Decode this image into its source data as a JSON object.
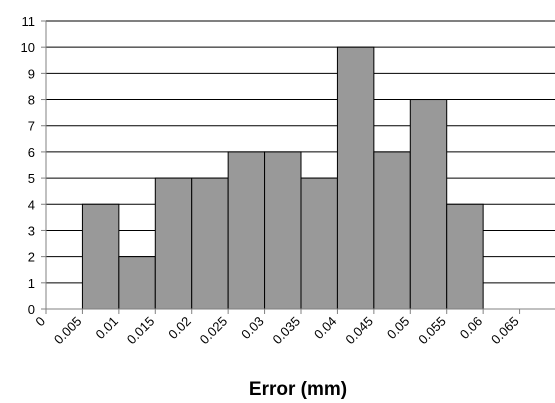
{
  "chart_data": {
    "type": "bar",
    "title": "",
    "xlabel": "Error (mm)",
    "ylabel": "",
    "x_ticks": [
      "0",
      "0.005",
      "0.01",
      "0.015",
      "0.02",
      "0.025",
      "0.03",
      "0.035",
      "0.04",
      "0.045",
      "0.05",
      "0.055",
      "0.06",
      "0.065"
    ],
    "y_ticks": [
      "0",
      "1",
      "2",
      "3",
      "4",
      "5",
      "6",
      "7",
      "8",
      "9",
      "10",
      "11"
    ],
    "ylim": [
      0,
      11
    ],
    "bins": [
      {
        "from": 0.005,
        "to": 0.01,
        "value": 4
      },
      {
        "from": 0.01,
        "to": 0.015,
        "value": 2
      },
      {
        "from": 0.015,
        "to": 0.02,
        "value": 5
      },
      {
        "from": 0.02,
        "to": 0.025,
        "value": 5
      },
      {
        "from": 0.025,
        "to": 0.03,
        "value": 6
      },
      {
        "from": 0.03,
        "to": 0.035,
        "value": 6
      },
      {
        "from": 0.035,
        "to": 0.04,
        "value": 5
      },
      {
        "from": 0.04,
        "to": 0.045,
        "value": 10
      },
      {
        "from": 0.045,
        "to": 0.05,
        "value": 6
      },
      {
        "from": 0.05,
        "to": 0.055,
        "value": 8
      },
      {
        "from": 0.055,
        "to": 0.06,
        "value": 4
      }
    ],
    "grid": true,
    "colors": {
      "bar": "#999999",
      "bar_edge": "#000000",
      "grid": "#000000",
      "axis": "#808080"
    }
  }
}
